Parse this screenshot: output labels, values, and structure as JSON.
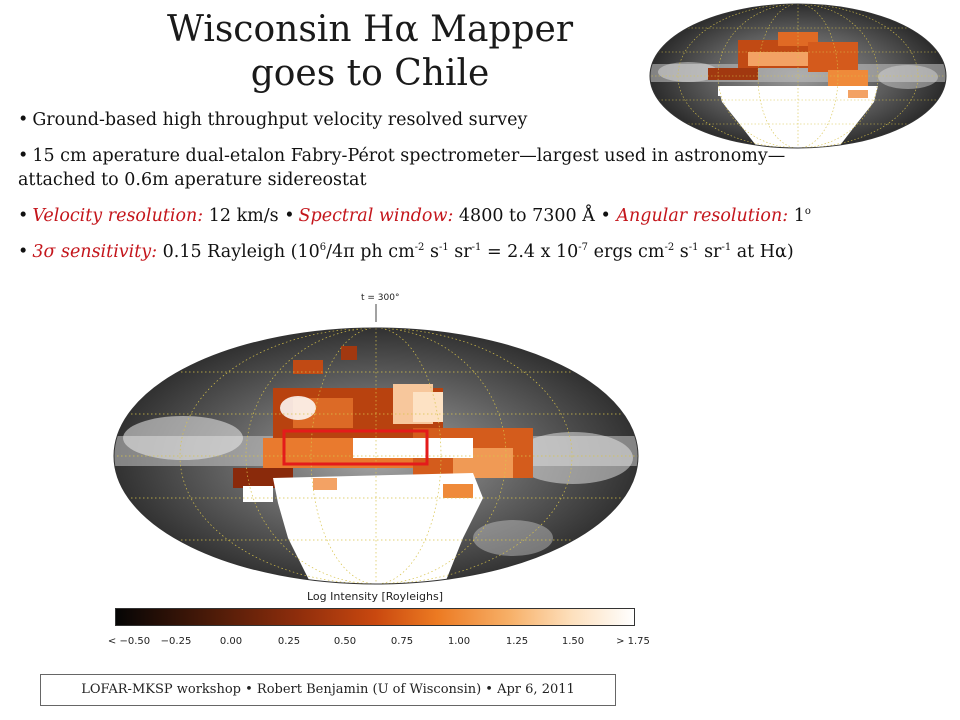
{
  "title": {
    "line1": "Wisconsin Hα Mapper",
    "line2": "goes to Chile"
  },
  "bullets": {
    "b1": "Ground-based high throughput velocity resolved survey",
    "b2_line1": "15 cm aperature dual-etalon Fabry-Pérot spectrometer—largest used in astronomy—",
    "b2_line2": "attached to 0.6m aperature sidereostat",
    "b3": {
      "vel_label": "Velocity resolution:",
      "vel_value": " 12 km/s  ",
      "spec_label": "Spectral window:",
      "spec_value": " 4800 to 7300 Å • ",
      "ang_label": "Angular resolution:",
      "ang_value": " 1",
      "ang_unit": "o"
    },
    "b4": {
      "label": "3σ  sensitivity:",
      "p1": " 0.15 Rayleigh (10",
      "s1": "6",
      "p2": "/4π ph cm",
      "s2": "-2",
      "p3": " s",
      "s3": "-1",
      "p4": " sr",
      "s4": "-1",
      "p5": " = 2.4 x 10",
      "s5": "-7",
      "p6": " ergs cm",
      "s6": "-2",
      "p7": " s",
      "s7": "-1",
      "p8": " sr",
      "s8": "-1",
      "p9": " at Hα)"
    }
  },
  "map": {
    "t_label": "t = 300°"
  },
  "colorbar": {
    "title": "Log Intensity [Royleighs]",
    "ticks": [
      "< −0.50",
      "−0.25",
      "0.00",
      "0.25",
      "0.50",
      "0.75",
      "1.00",
      "1.25",
      "1.50",
      "> 1.75"
    ]
  },
  "footer": "LOFAR-MKSP workshop • Robert Benjamin (U of Wisconsin) • Apr 6, 2011",
  "colors": {
    "accent_red": "#c4161c",
    "highlight_box": "#e41b1b"
  }
}
